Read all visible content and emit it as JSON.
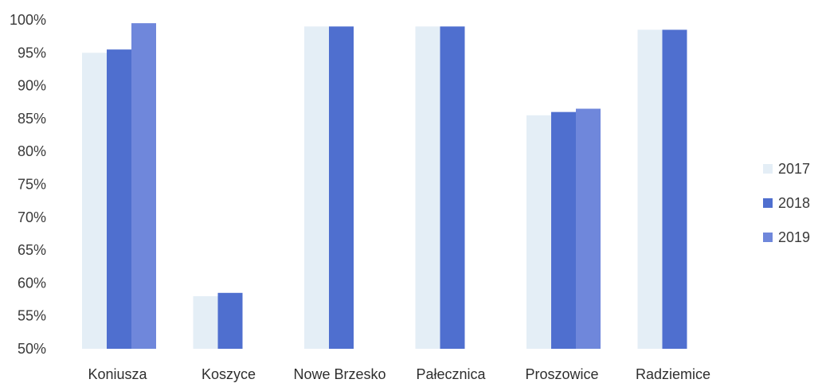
{
  "chart_data": {
    "type": "bar",
    "categories": [
      "Koniusza",
      "Koszyce",
      "Nowe Brzesko",
      "Pałecznica",
      "Proszowice",
      "Radziemice"
    ],
    "series": [
      {
        "name": "2017",
        "values": [
          95,
          58,
          99,
          99,
          85.5,
          98.5
        ],
        "color": "#e4eef6"
      },
      {
        "name": "2018",
        "values": [
          95.5,
          58.5,
          99,
          99,
          86,
          98.5
        ],
        "color": "#4f6fcf"
      },
      {
        "name": "2019",
        "values": [
          99.5,
          null,
          null,
          null,
          86.5,
          null
        ],
        "color": "#6f87db"
      }
    ],
    "y_ticks": [
      "50%",
      "55%",
      "60%",
      "65%",
      "70%",
      "75%",
      "80%",
      "85%",
      "90%",
      "95%",
      "100%"
    ],
    "ylim": [
      50,
      100
    ],
    "grid": false,
    "legend_position": "right"
  }
}
